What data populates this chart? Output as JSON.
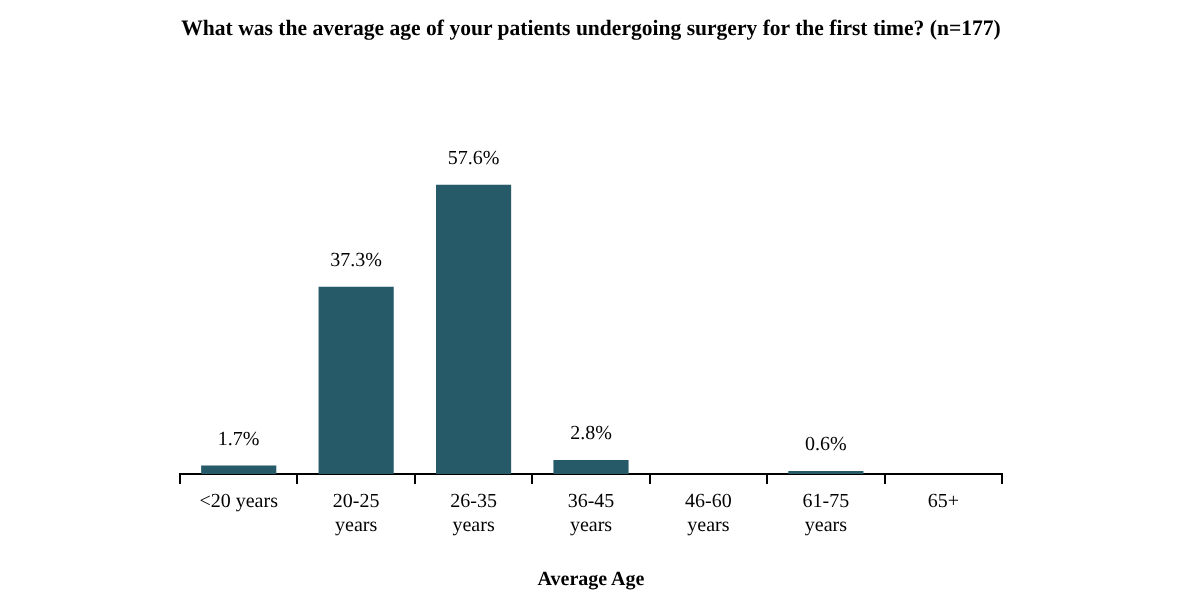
{
  "chart_data": {
    "type": "bar",
    "title": "What was the average age of your patients undergoing surgery for the first time? (n=177)",
    "xlabel": "Average Age",
    "categories": [
      "<20 years",
      "20-25 years",
      "26-35 years",
      "36-45 years",
      "46-60 years",
      "61-75 years",
      "65+"
    ],
    "values": [
      1.7,
      37.3,
      57.6,
      2.8,
      0,
      0.6,
      0
    ],
    "value_labels": [
      "1.7%",
      "37.3%",
      "57.6%",
      "2.8%",
      null,
      "0.6%",
      null
    ],
    "color": "#265a69",
    "legend": false,
    "grid": false
  }
}
